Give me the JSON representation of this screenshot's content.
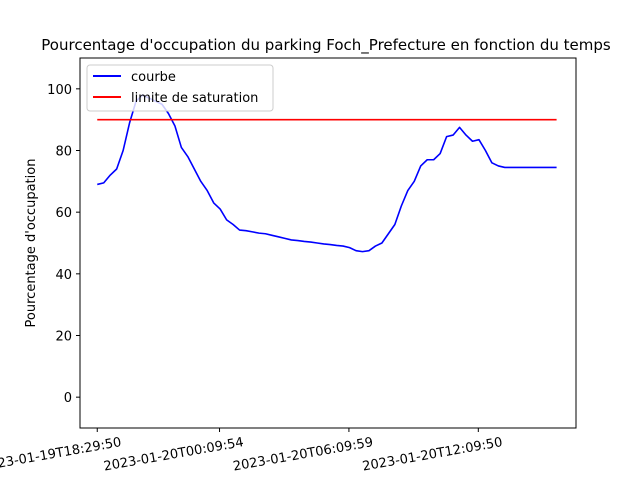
{
  "chart_data": {
    "type": "line",
    "title": "Pourcentage d'occupation du parking Foch_Prefecture en fonction du temps",
    "xlabel": "",
    "ylabel": "Pourcentage d'occupation",
    "ylim": [
      -10,
      110
    ],
    "yticks": [
      0,
      20,
      40,
      60,
      80,
      100
    ],
    "xlim": [
      -0.8,
      22.2
    ],
    "xticks": [
      {
        "at": 0,
        "label": "2023-01-19T18:29:50"
      },
      {
        "at": 5.67,
        "label": "2023-01-20T00:09:54"
      },
      {
        "at": 11.67,
        "label": "2023-01-20T06:09:59"
      },
      {
        "at": 17.67,
        "label": "2023-01-20T12:09:50"
      }
    ],
    "x_unit_note_hidden": false,
    "grid": false,
    "legend": {
      "position": "upper-left"
    },
    "series": [
      {
        "name": "courbe",
        "color": "#0000ff",
        "x": [
          0,
          0.3,
          0.6,
          0.9,
          1.2,
          1.5,
          1.8,
          2.1,
          2.4,
          2.7,
          3.0,
          3.3,
          3.6,
          3.9,
          4.2,
          4.5,
          4.8,
          5.1,
          5.4,
          5.7,
          6.0,
          6.3,
          6.6,
          6.9,
          7.2,
          7.5,
          7.8,
          8.1,
          8.4,
          8.7,
          9.0,
          9.3,
          9.6,
          9.9,
          10.2,
          10.5,
          10.8,
          11.1,
          11.4,
          11.7,
          12.0,
          12.3,
          12.6,
          12.9,
          13.2,
          13.5,
          13.8,
          14.1,
          14.4,
          14.7,
          15.0,
          15.3,
          15.6,
          15.9,
          16.2,
          16.5,
          16.8,
          17.1,
          17.4,
          17.7,
          18.0,
          18.3,
          18.6,
          18.9,
          19.2,
          19.5,
          19.8,
          20.1,
          20.4,
          20.7,
          21.0,
          21.3
        ],
        "y": [
          69,
          69.5,
          72,
          74,
          80,
          89,
          96,
          98,
          97,
          96,
          95,
          92,
          88,
          81,
          78,
          74,
          70,
          67,
          63,
          61,
          57.5,
          56,
          54.2,
          54,
          53.6,
          53.2,
          53,
          52.5,
          52,
          51.5,
          51,
          50.8,
          50.5,
          50.3,
          50,
          49.7,
          49.5,
          49.2,
          49,
          48.5,
          47.5,
          47.2,
          47.5,
          49,
          50,
          53,
          56,
          62,
          67,
          70,
          75,
          77,
          77,
          79,
          84.5,
          85,
          87.5,
          85,
          83,
          83.5,
          80,
          76,
          75,
          74.5,
          74.5,
          74.5,
          74.5,
          74.5,
          74.5,
          74.5,
          74.5,
          74.5
        ]
      },
      {
        "name": "limite de saturation",
        "color": "#ff0000",
        "x": [
          0,
          21.3
        ],
        "y": [
          90,
          90
        ]
      }
    ]
  }
}
